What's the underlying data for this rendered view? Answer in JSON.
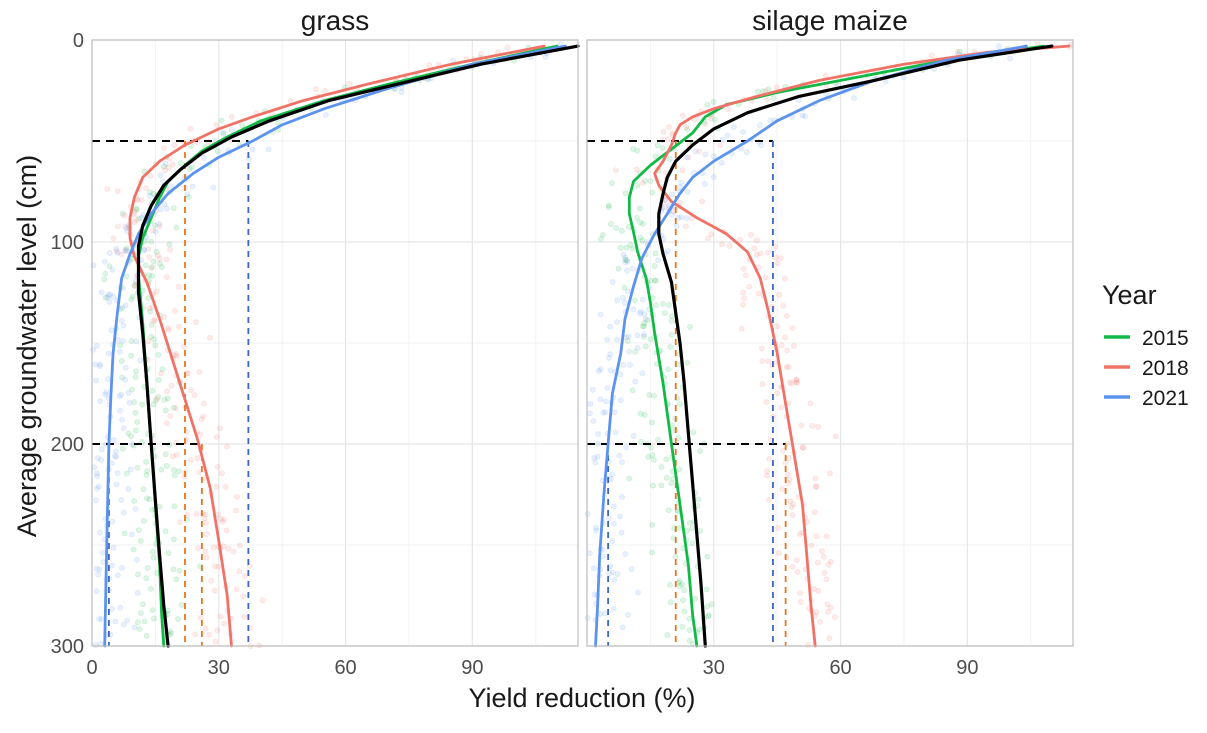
{
  "chart_data": {
    "type": "line",
    "ylabel": "Average groundwater level (cm)",
    "xlabel": "Yield reduction (%)",
    "x_ticks": [
      0,
      30,
      60,
      90
    ],
    "y_ticks": [
      0,
      100,
      200,
      300
    ],
    "ylim": [
      0,
      300
    ],
    "y_reversed": true,
    "grid": true,
    "legend": {
      "title": "Year",
      "position": "right",
      "entries": [
        {
          "label": "2015",
          "color": "#12b946"
        },
        {
          "label": "2018",
          "color": "#f07267"
        },
        {
          "label": "2021",
          "color": "#5b93ee"
        }
      ]
    },
    "overall_line_color": "#000000",
    "reference_depths": [
      50,
      200
    ],
    "panels": [
      {
        "title": "grass",
        "xlim": [
          0,
          115
        ],
        "series": [
          {
            "name": "2015",
            "color": "#12b946",
            "points": [
              [
                110,
                3
              ],
              [
                90,
                12
              ],
              [
                70,
                22
              ],
              [
                55,
                30
              ],
              [
                40,
                40
              ],
              [
                32,
                48
              ],
              [
                26,
                55
              ],
              [
                22,
                62
              ],
              [
                18,
                70
              ],
              [
                16,
                78
              ],
              [
                14,
                88
              ],
              [
                12,
                98
              ],
              [
                11,
                107
              ],
              [
                11,
                117
              ],
              [
                12,
                140
              ],
              [
                13,
                170
              ],
              [
                14,
                200
              ],
              [
                15,
                230
              ],
              [
                16,
                260
              ],
              [
                16.5,
                285
              ],
              [
                17,
                300
              ]
            ]
          },
          {
            "name": "2018",
            "color": "#f07267",
            "points": [
              [
                107,
                3
              ],
              [
                85,
                12
              ],
              [
                65,
                22
              ],
              [
                50,
                30
              ],
              [
                38,
                38
              ],
              [
                30,
                44
              ],
              [
                22,
                52
              ],
              [
                16,
                60
              ],
              [
                12,
                68
              ],
              [
                10,
                78
              ],
              [
                9,
                88
              ],
              [
                9,
                98
              ],
              [
                10,
                107
              ],
              [
                13,
                120
              ],
              [
                16,
                138
              ],
              [
                19,
                158
              ],
              [
                22,
                178
              ],
              [
                25,
                198
              ],
              [
                28,
                222
              ],
              [
                30,
                248
              ],
              [
                32,
                275
              ],
              [
                33,
                300
              ]
            ]
          },
          {
            "name": "2021",
            "color": "#5b93ee",
            "points": [
              [
                112,
                3
              ],
              [
                90,
                12
              ],
              [
                70,
                24
              ],
              [
                55,
                34
              ],
              [
                45,
                42
              ],
              [
                38,
                50
              ],
              [
                30,
                58
              ],
              [
                24,
                66
              ],
              [
                18,
                76
              ],
              [
                14,
                86
              ],
              [
                11,
                96
              ],
              [
                9,
                106
              ],
              [
                7,
                118
              ],
              [
                6,
                135
              ],
              [
                5,
                155
              ],
              [
                4.5,
                175
              ],
              [
                4,
                200
              ],
              [
                3.7,
                230
              ],
              [
                3.3,
                270
              ],
              [
                3,
                300
              ]
            ]
          },
          {
            "name": "all",
            "color": "#000000",
            "points": [
              [
                115,
                3
              ],
              [
                92,
                12
              ],
              [
                72,
                22
              ],
              [
                56,
                30
              ],
              [
                42,
                40
              ],
              [
                33,
                48
              ],
              [
                26,
                56
              ],
              [
                21,
                64
              ],
              [
                17,
                72
              ],
              [
                14,
                82
              ],
              [
                12,
                92
              ],
              [
                11,
                102
              ],
              [
                11,
                112
              ],
              [
                11,
                125
              ],
              [
                12,
                145
              ],
              [
                13,
                170
              ],
              [
                14,
                200
              ],
              [
                15,
                228
              ],
              [
                16,
                255
              ],
              [
                17,
                280
              ],
              [
                18,
                300
              ]
            ]
          }
        ],
        "drop_lines": [
          {
            "x": 22,
            "color": "#e8761f"
          },
          {
            "x": 26,
            "color": "#e8761f"
          },
          {
            "x": 37,
            "color": "#3c66c8"
          },
          {
            "x": 4,
            "color": "#3c66c8"
          }
        ]
      },
      {
        "title": "silage maize",
        "xlim": [
          0,
          115
        ],
        "series": [
          {
            "name": "2015",
            "color": "#12b946",
            "points": [
              [
                108,
                3
              ],
              [
                85,
                10
              ],
              [
                65,
                18
              ],
              [
                45,
                26
              ],
              [
                33,
                32
              ],
              [
                28,
                38
              ],
              [
                25,
                46
              ],
              [
                20,
                54
              ],
              [
                15,
                62
              ],
              [
                11,
                70
              ],
              [
                10,
                78
              ],
              [
                10,
                86
              ],
              [
                11,
                95
              ],
              [
                12,
                105
              ],
              [
                14,
                118
              ],
              [
                15,
                130
              ],
              [
                16,
                145
              ],
              [
                18,
                170
              ],
              [
                20,
                200
              ],
              [
                22,
                230
              ],
              [
                24,
                260
              ],
              [
                25,
                285
              ],
              [
                26,
                300
              ]
            ]
          },
          {
            "name": "2018",
            "color": "#f07267",
            "points": [
              [
                114,
                3
              ],
              [
                95,
                6
              ],
              [
                75,
                12
              ],
              [
                55,
                20
              ],
              [
                40,
                28
              ],
              [
                30,
                34
              ],
              [
                25,
                38
              ],
              [
                22,
                42
              ],
              [
                21,
                46
              ],
              [
                20,
                52
              ],
              [
                18,
                60
              ],
              [
                16,
                66
              ],
              [
                17,
                72
              ],
              [
                20,
                80
              ],
              [
                26,
                88
              ],
              [
                33,
                96
              ],
              [
                38,
                105
              ],
              [
                41,
                118
              ],
              [
                43,
                135
              ],
              [
                45,
                155
              ],
              [
                47,
                180
              ],
              [
                49,
                205
              ],
              [
                51,
                230
              ],
              [
                52,
                255
              ],
              [
                53,
                280
              ],
              [
                54,
                300
              ]
            ]
          },
          {
            "name": "2021",
            "color": "#5b93ee",
            "points": [
              [
                104,
                3
              ],
              [
                85,
                10
              ],
              [
                68,
                20
              ],
              [
                55,
                30
              ],
              [
                45,
                40
              ],
              [
                38,
                50
              ],
              [
                30,
                60
              ],
              [
                25,
                68
              ],
              [
                22,
                76
              ],
              [
                19,
                86
              ],
              [
                16,
                96
              ],
              [
                13,
                108
              ],
              [
                11,
                122
              ],
              [
                9,
                138
              ],
              [
                8,
                155
              ],
              [
                6,
                175
              ],
              [
                5,
                200
              ],
              [
                4,
                225
              ],
              [
                3,
                255
              ],
              [
                2.5,
                280
              ],
              [
                2,
                300
              ]
            ]
          },
          {
            "name": "all",
            "color": "#000000",
            "points": [
              [
                110,
                3
              ],
              [
                88,
                10
              ],
              [
                68,
                20
              ],
              [
                50,
                28
              ],
              [
                38,
                36
              ],
              [
                30,
                44
              ],
              [
                25,
                52
              ],
              [
                21,
                60
              ],
              [
                19,
                68
              ],
              [
                18,
                76
              ],
              [
                17,
                86
              ],
              [
                17,
                96
              ],
              [
                18,
                106
              ],
              [
                20,
                120
              ],
              [
                21,
                135
              ],
              [
                22,
                150
              ],
              [
                23,
                170
              ],
              [
                24,
                195
              ],
              [
                25,
                220
              ],
              [
                26,
                245
              ],
              [
                27,
                270
              ],
              [
                28,
                300
              ]
            ]
          }
        ],
        "drop_lines": [
          {
            "x": 21,
            "color": "#e8761f"
          },
          {
            "x": 47,
            "color": "#e8761f"
          },
          {
            "x": 44,
            "color": "#3c66c8"
          },
          {
            "x": 5,
            "color": "#3c66c8"
          }
        ]
      }
    ]
  }
}
